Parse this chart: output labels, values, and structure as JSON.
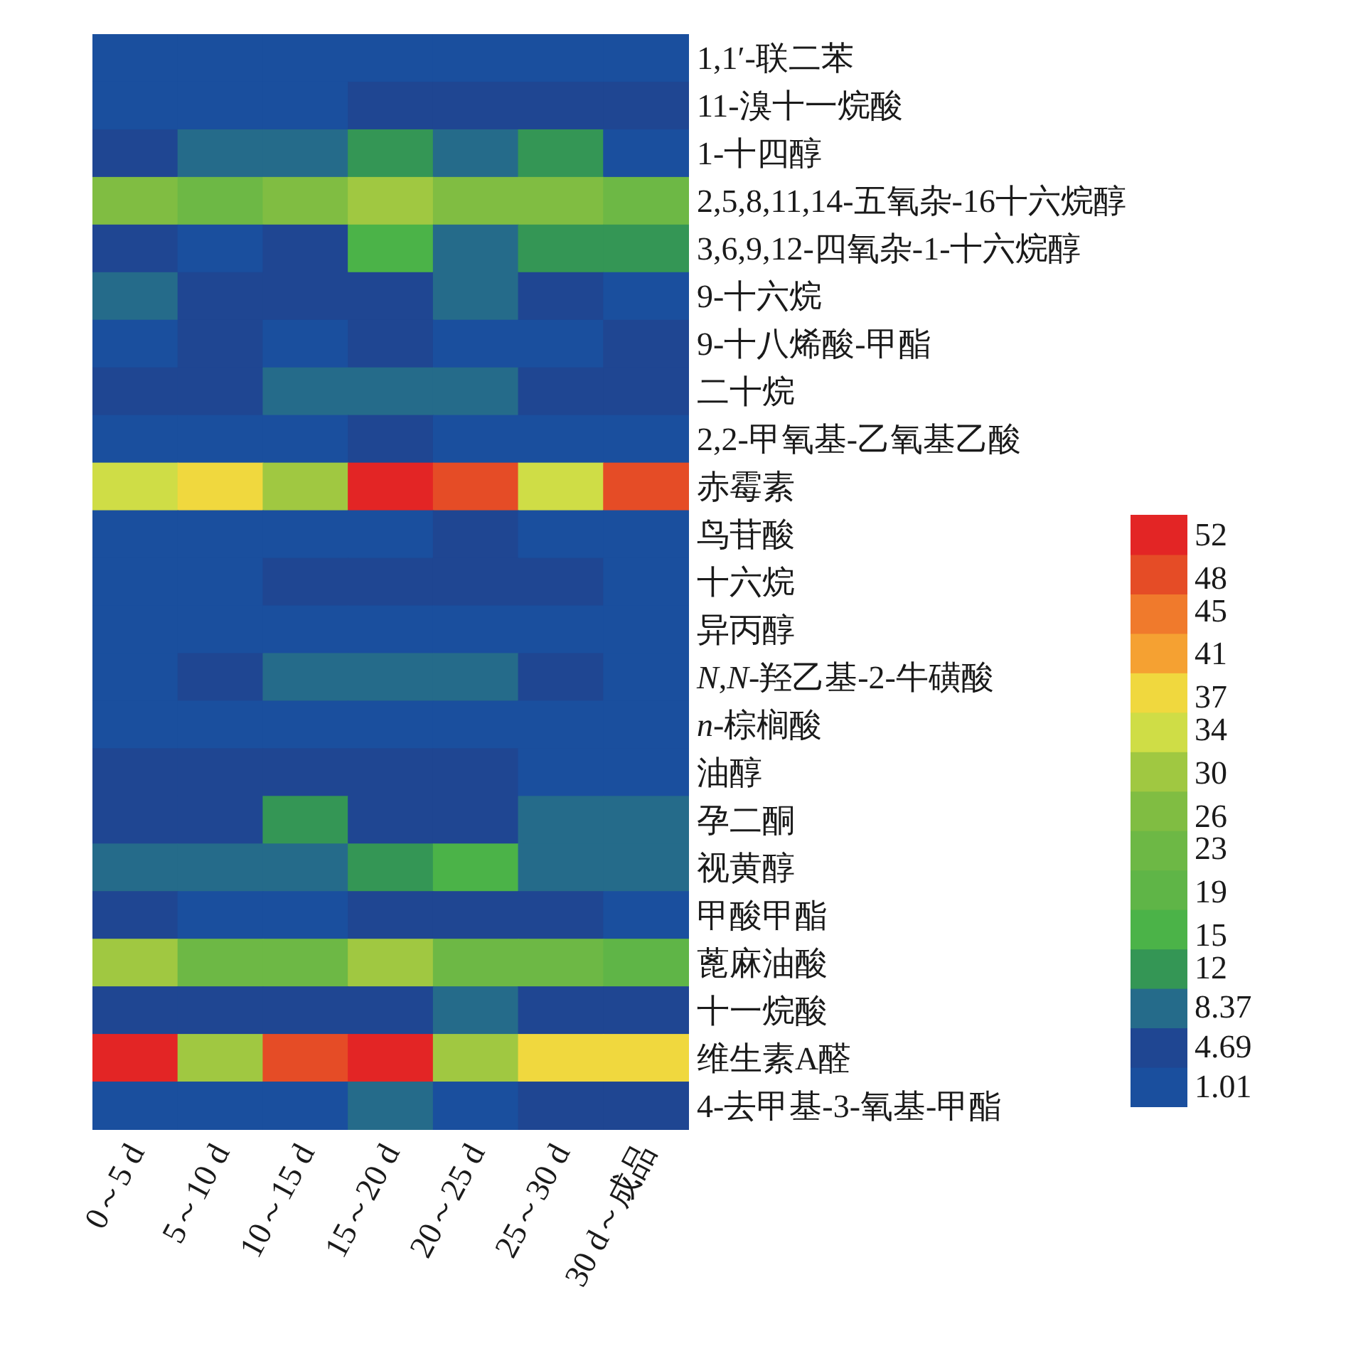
{
  "chart_data": {
    "type": "heatmap",
    "categories": [
      "0～5 d",
      "5～10 d",
      "10～15 d",
      "15～20 d",
      "20～25 d",
      "25～30 d",
      "30 d～成品"
    ],
    "y_categories": [
      "1,1′-联二苯",
      "11-溴十一烷酸",
      "1-十四醇",
      "2,5,8,11,14-五氧杂-16十六烷醇",
      "3,6,9,12-四氧杂-1-十六烷醇",
      "9-十六烷",
      "9-十八烯酸-甲酯",
      "二十烷",
      "2,2-甲氧基-乙氧基乙酸",
      "赤霉素",
      "鸟苷酸",
      "十六烷",
      "异丙醇",
      "*N*,*N*-羟乙基-2-牛磺酸",
      "*n*-棕榈酸",
      "油醇",
      "孕二酮",
      "视黄醇",
      "甲酸甲酯",
      "蓖麻油酸",
      "十一烷酸",
      "维生素A醛",
      "4-去甲基-3-氧基-甲酯"
    ],
    "cells": [
      [
        1.01,
        1.01,
        1.01,
        1.01,
        1.01,
        1.01,
        1.01
      ],
      [
        1.01,
        1.01,
        1.01,
        4.69,
        4.69,
        4.69,
        4.69
      ],
      [
        4.69,
        8.37,
        8.37,
        12,
        8.37,
        12,
        1.01
      ],
      [
        26,
        23,
        26,
        30,
        26,
        26,
        23
      ],
      [
        4.69,
        1.01,
        4.69,
        15,
        8.37,
        12,
        12
      ],
      [
        8.37,
        4.69,
        4.69,
        4.69,
        8.37,
        4.69,
        1.01
      ],
      [
        1.01,
        4.69,
        1.01,
        4.69,
        1.01,
        1.01,
        4.69
      ],
      [
        4.69,
        4.69,
        8.37,
        8.37,
        8.37,
        4.69,
        4.69
      ],
      [
        1.01,
        1.01,
        1.01,
        4.69,
        1.01,
        1.01,
        1.01
      ],
      [
        34,
        37,
        30,
        52,
        48,
        34,
        48
      ],
      [
        1.01,
        1.01,
        1.01,
        1.01,
        4.69,
        1.01,
        1.01
      ],
      [
        1.01,
        1.01,
        4.69,
        4.69,
        4.69,
        4.69,
        1.01
      ],
      [
        1.01,
        1.01,
        1.01,
        1.01,
        1.01,
        1.01,
        1.01
      ],
      [
        1.01,
        4.69,
        8.37,
        8.37,
        8.37,
        4.69,
        1.01
      ],
      [
        1.01,
        1.01,
        1.01,
        1.01,
        1.01,
        1.01,
        1.01
      ],
      [
        4.69,
        4.69,
        4.69,
        4.69,
        4.69,
        1.01,
        1.01
      ],
      [
        4.69,
        4.69,
        12,
        4.69,
        4.69,
        8.37,
        8.37
      ],
      [
        8.37,
        8.37,
        8.37,
        12,
        15,
        8.37,
        8.37
      ],
      [
        4.69,
        1.01,
        1.01,
        4.69,
        4.69,
        4.69,
        1.01
      ],
      [
        30,
        23,
        23,
        30,
        23,
        23,
        19
      ],
      [
        4.69,
        4.69,
        4.69,
        4.69,
        8.37,
        4.69,
        4.69
      ],
      [
        52,
        30,
        48,
        52,
        30,
        37,
        37
      ],
      [
        1.01,
        1.01,
        1.01,
        8.37,
        1.01,
        4.69,
        4.69
      ]
    ],
    "clim": [
      -0.83,
      53.84
    ],
    "cticks": [
      1.01,
      4.69,
      8.37,
      12,
      15,
      19,
      23,
      26,
      30,
      34,
      37,
      41,
      45,
      48,
      52
    ]
  }
}
